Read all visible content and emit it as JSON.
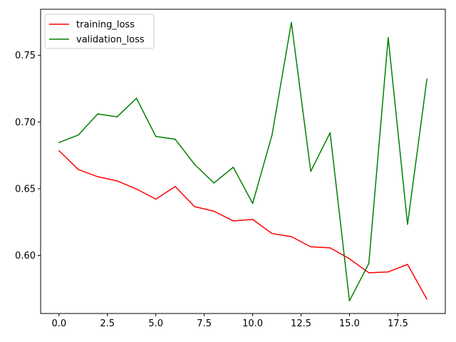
{
  "chart_data": {
    "type": "line",
    "title": "",
    "xlabel": "",
    "ylabel": "",
    "xlim": [
      -0.95,
      19.95
    ],
    "ylim": [
      0.5565,
      0.7845
    ],
    "xticks": [
      0.0,
      2.5,
      5.0,
      7.5,
      10.0,
      12.5,
      15.0,
      17.5
    ],
    "xtick_labels": [
      "0.0",
      "2.5",
      "5.0",
      "7.5",
      "10.0",
      "12.5",
      "15.0",
      "17.5"
    ],
    "yticks": [
      0.6,
      0.65,
      0.7,
      0.75
    ],
    "ytick_labels": [
      "0.60",
      "0.65",
      "0.70",
      "0.75"
    ],
    "grid": false,
    "legend_position": "top-left",
    "x": [
      0,
      1,
      2,
      3,
      4,
      5,
      6,
      7,
      8,
      9,
      10,
      11,
      12,
      13,
      14,
      15,
      16,
      17,
      18,
      19
    ],
    "series": [
      {
        "name": "training_loss",
        "color": "#ff0000",
        "values": [
          0.6785,
          0.6644,
          0.659,
          0.6559,
          0.6498,
          0.6422,
          0.6517,
          0.6366,
          0.6332,
          0.6259,
          0.627,
          0.6164,
          0.6141,
          0.6065,
          0.6057,
          0.5975,
          0.587,
          0.5877,
          0.5933,
          0.5672
        ]
      },
      {
        "name": "validation_loss",
        "color": "#008000",
        "values": [
          0.6846,
          0.6903,
          0.7061,
          0.7039,
          0.7178,
          0.6892,
          0.6871,
          0.6683,
          0.6543,
          0.6661,
          0.639,
          0.6902,
          0.7746,
          0.663,
          0.692,
          0.566,
          0.594,
          0.7632,
          0.6233,
          0.7322
        ]
      }
    ]
  }
}
